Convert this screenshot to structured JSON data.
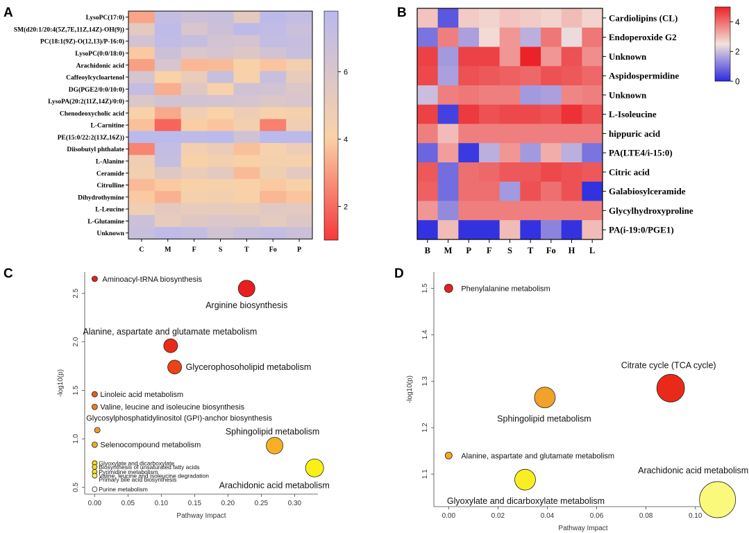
{
  "chart_data": [
    {
      "panel": "A",
      "type": "heatmap",
      "columns": [
        "C",
        "M",
        "F",
        "S",
        "T",
        "Fo",
        "P"
      ],
      "rows": [
        "LysoPC(17:0)",
        "SM(d20:1/20:4(5Z,7E,11Z,14Z)-OH(9))",
        "PC(18:1(9Z)-O(12,13)/P-16:0)",
        "LysoPC(0:0/18:0)",
        "Arachidonic acid",
        "Caffeoylcycloartenol",
        "DG(PGE2/0:0/10:0)",
        "LysoPA(20:2(11Z,14Z)/0:0)",
        "Chenodeoxycholic acid",
        "L-Carnitine",
        "PE(15:0/22:2(13Z,16Z))",
        "Diisobutyl phthalate",
        "L-Alanine",
        "Ceramide",
        "Citrulline",
        "Dihydrothymine",
        "L-Leucine",
        "L-Glutamine",
        "Unknown"
      ],
      "values": [
        [
          3.4,
          7.3,
          6.8,
          7.0,
          5.6,
          7.6,
          7.3
        ],
        [
          5.6,
          7.5,
          6.2,
          6.8,
          7.6,
          7.4,
          6.9
        ],
        [
          6.5,
          7.4,
          7.1,
          6.5,
          6.4,
          7.3,
          7.1
        ],
        [
          4.2,
          6.8,
          6.1,
          6.3,
          5.9,
          6.5,
          7.0
        ],
        [
          3.3,
          6.2,
          3.8,
          3.9,
          4.5,
          4.1,
          4.8
        ],
        [
          6.3,
          4.4,
          5.2,
          7.0,
          4.6,
          7.0,
          5.4
        ],
        [
          7.2,
          3.6,
          5.8,
          4.6,
          6.6,
          6.5,
          6.0
        ],
        [
          6.0,
          6.5,
          6.5,
          6.4,
          6.3,
          6.0,
          6.2
        ],
        [
          4.5,
          3.5,
          5.0,
          4.4,
          5.1,
          4.6,
          4.7
        ],
        [
          4.0,
          2.0,
          4.3,
          4.1,
          4.8,
          2.6,
          5.0
        ],
        [
          7.7,
          7.7,
          7.5,
          7.7,
          6.6,
          7.7,
          7.6
        ],
        [
          2.7,
          7.3,
          4.8,
          5.2,
          4.0,
          4.6,
          5.1
        ],
        [
          5.0,
          7.1,
          4.5,
          4.8,
          4.5,
          4.7,
          4.6
        ],
        [
          4.8,
          5.8,
          5.2,
          5.6,
          3.9,
          4.9,
          5.6
        ],
        [
          3.9,
          4.2,
          4.5,
          4.6,
          4.5,
          4.2,
          4.5
        ],
        [
          4.2,
          3.7,
          4.7,
          4.8,
          4.5,
          3.8,
          4.1
        ],
        [
          5.0,
          5.6,
          5.4,
          5.4,
          5.3,
          5.7,
          5.6
        ],
        [
          6.8,
          5.4,
          5.8,
          6.1,
          5.9,
          5.5,
          5.9
        ],
        [
          7.0,
          7.5,
          7.3,
          6.5,
          7.0,
          7.3,
          6.8
        ]
      ],
      "colorbar": {
        "min": 1.0,
        "max": 7.8,
        "ticks": [
          2,
          4,
          6
        ],
        "tick_labels": [
          "2",
          "4",
          "6"
        ],
        "colors": [
          "#f5383c",
          "#fad2a7",
          "#b9b9ee"
        ]
      }
    },
    {
      "panel": "B",
      "type": "heatmap",
      "columns": [
        "B",
        "M",
        "P",
        "F",
        "S",
        "T",
        "Fo",
        "H",
        "L"
      ],
      "rows": [
        "Cardiolipins (CL)",
        "Endoperoxide G2",
        "Unknown",
        "Aspidospermidine",
        "Unknown",
        "L-Isoleucine",
        "hippuric acid",
        "PA(LTE4/i-15:0)",
        "Citric acid",
        "Galabiosylceramide",
        "Glycylhydroxyproline",
        "PA(i-19:0/PGE1)"
      ],
      "values": [
        [
          2.9,
          0.6,
          2.8,
          2.7,
          2.9,
          2.8,
          2.7,
          3.0,
          2.7
        ],
        [
          1.0,
          3.8,
          1.6,
          2.6,
          3.5,
          1.8,
          3.9,
          2.4,
          3.9
        ],
        [
          4.6,
          1.5,
          4.6,
          4.6,
          3.5,
          5.0,
          3.5,
          4.4,
          3.6
        ],
        [
          4.5,
          1.6,
          4.4,
          4.3,
          4.2,
          4.1,
          4.4,
          4.3,
          4.1
        ],
        [
          2.0,
          3.8,
          3.9,
          3.8,
          3.8,
          1.5,
          1.6,
          3.7,
          3.8
        ],
        [
          4.6,
          0.3,
          4.7,
          4.4,
          4.5,
          4.5,
          4.4,
          4.8,
          4.4
        ],
        [
          3.8,
          3.0,
          3.8,
          3.8,
          3.8,
          3.8,
          3.8,
          3.8,
          3.8
        ],
        [
          0.8,
          3.4,
          0.2,
          1.8,
          3.5,
          1.5,
          3.2,
          1.8,
          1.0
        ],
        [
          4.3,
          0.9,
          4.0,
          4.1,
          4.3,
          4.3,
          4.5,
          4.4,
          4.3
        ],
        [
          4.2,
          0.9,
          4.0,
          4.0,
          1.5,
          4.4,
          4.0,
          4.4,
          0.1
        ],
        [
          3.5,
          1.3,
          3.8,
          3.8,
          3.8,
          3.8,
          3.8,
          3.8,
          3.8
        ],
        [
          0.1,
          3.0,
          0.1,
          0.1,
          3.0,
          0.1,
          1.2,
          0.1,
          3.0
        ]
      ],
      "colorbar": {
        "min": 0,
        "max": 5,
        "ticks": [
          0,
          2,
          4
        ],
        "tick_labels": [
          "0",
          "2",
          "4"
        ],
        "colors": [
          "#2b2be0",
          "#f3e2dc",
          "#eb2328"
        ]
      }
    },
    {
      "panel": "C",
      "type": "scatter",
      "xlabel": "Pathway Impact",
      "ylabel": "-log10(p)",
      "xlim": [
        -0.015,
        0.335
      ],
      "ylim": [
        0.43,
        2.72
      ],
      "xticks": [
        0.0,
        0.05,
        0.1,
        0.15,
        0.2,
        0.25,
        0.3
      ],
      "xtick_labels": [
        "0.00",
        "0.05",
        "0.10",
        "0.15",
        "0.20",
        "0.25",
        "0.30"
      ],
      "yticks": [
        0.5,
        1.0,
        1.5,
        2.0,
        2.5
      ],
      "ytick_labels": [
        "0.5",
        "1.0",
        "1.5",
        "2.0",
        "2.5"
      ],
      "points": [
        {
          "label": "Aminoacyl-tRNA biosynthesis",
          "x": 0.0,
          "y": 2.65,
          "r": 4,
          "color": "#e81f1f"
        },
        {
          "label": "Arginine biosynthesis",
          "x": 0.228,
          "y": 2.55,
          "r": 12,
          "color": "#e81f1f"
        },
        {
          "label": "Alanine, aspartate and glutamate metabolism",
          "x": 0.114,
          "y": 1.96,
          "r": 10,
          "color": "#ea2a18"
        },
        {
          "label": "Glycerophosoholipid metabolism",
          "x": 0.12,
          "y": 1.74,
          "r": 10,
          "color": "#ec4216"
        },
        {
          "label": "Linoleic acid metabolism",
          "x": 0.0,
          "y": 1.46,
          "r": 4,
          "color": "#ee5a18"
        },
        {
          "label": "Valine, leucine and isoleucine biosynthesis",
          "x": 0.0,
          "y": 1.33,
          "r": 4,
          "color": "#f07a1c"
        },
        {
          "label": "Glycosylphosphatidylinositol (GPI)-anchor biosynthesis",
          "x": 0.004,
          "y": 1.09,
          "r": 4,
          "color": "#f39a20"
        },
        {
          "label": "Selenocompound metabolism",
          "x": 0.0,
          "y": 0.94,
          "r": 4,
          "color": "#f5aa23"
        },
        {
          "label": "Sphingolipid metabolism",
          "x": 0.27,
          "y": 0.93,
          "r": 12,
          "color": "#f5b025"
        },
        {
          "label": "Arachidonic acid metabolism",
          "x": 0.33,
          "y": 0.7,
          "r": 13,
          "color": "#faf017"
        },
        {
          "label": "Glyoxylate and dicarboxylate",
          "x": 0.0,
          "y": 0.75,
          "r": 3.5,
          "color": "#f7d21c"
        },
        {
          "label": "Biosynthesis of unsaturated fatty acids",
          "x": 0.0,
          "y": 0.71,
          "r": 3.5,
          "color": "#f8dc1c"
        },
        {
          "label": "Pyrimidine metabolism",
          "x": 0.0,
          "y": 0.66,
          "r": 3.5,
          "color": "#f9e41c"
        },
        {
          "label": "Valine, leucine and isoleucine degradation",
          "x": 0.0,
          "y": 0.62,
          "r": 3.5,
          "color": "#fbef62"
        },
        {
          "label": "Primary bile acid biosynthesis",
          "x": 0.0,
          "y": 0.58,
          "r": 0,
          "color": "#fdf7a9"
        },
        {
          "label": "Purine metabolism",
          "x": 0.0,
          "y": 0.48,
          "r": 3.5,
          "color": "#ffffff"
        }
      ]
    },
    {
      "panel": "D",
      "type": "scatter",
      "xlabel": "Pathway Impact",
      "ylabel": "-log10(p)",
      "xlim": [
        -0.006,
        0.115
      ],
      "ylim": [
        1.03,
        1.535
      ],
      "xticks": [
        0.0,
        0.02,
        0.04,
        0.06,
        0.08,
        0.1
      ],
      "xtick_labels": [
        "0.00",
        "0.02",
        "0.04",
        "0.06",
        "0.08",
        "0.10"
      ],
      "yticks": [
        1.1,
        1.2,
        1.3,
        1.4,
        1.5
      ],
      "ytick_labels": [
        "1.1",
        "1.2",
        "1.3",
        "1.4",
        "1.5"
      ],
      "points": [
        {
          "label": "Phenylalanine metabolism",
          "x": 0.0,
          "y": 1.5,
          "r": 6,
          "color": "#e81f1f"
        },
        {
          "label": "Citrate cycle (TCA cycle)",
          "x": 0.09,
          "y": 1.285,
          "r": 20,
          "color": "#ea2a18"
        },
        {
          "label": "Sphingolipid metabolism",
          "x": 0.039,
          "y": 1.265,
          "r": 15,
          "color": "#f0a22a"
        },
        {
          "label": "Alanine, aspartate and glutamate metabolism",
          "x": 0.0,
          "y": 1.14,
          "r": 5,
          "color": "#f5a623"
        },
        {
          "label": "Glyoxylate and dicarboxylate metabolism",
          "x": 0.031,
          "y": 1.088,
          "r": 15,
          "color": "#f8ee22"
        },
        {
          "label": "Arachidonic acid metabolism",
          "x": 0.109,
          "y": 1.045,
          "r": 26,
          "color": "#fbf97c"
        }
      ]
    }
  ],
  "panels": {
    "A": {
      "letter": "A"
    },
    "B": {
      "letter": "B"
    },
    "C": {
      "letter": "C"
    },
    "D": {
      "letter": "D"
    }
  }
}
